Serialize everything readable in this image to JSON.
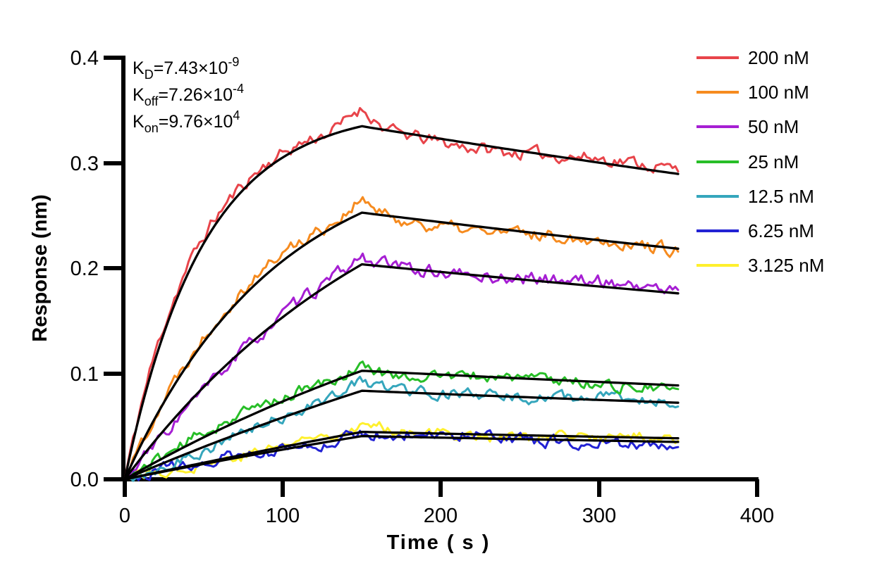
{
  "chart_data": {
    "type": "line",
    "title": "",
    "xlabel": "Time ( s )",
    "ylabel": "Response (nm)",
    "xlim": [
      0,
      400
    ],
    "ylim": [
      0,
      0.4
    ],
    "grid": "off",
    "legend_position": "right",
    "x_ticks": [
      "0",
      "100",
      "200",
      "300",
      "400"
    ],
    "y_ticks": [
      "0.4",
      "0.3",
      "0.2",
      "0.1",
      "0.0"
    ],
    "fit_color": "#000000",
    "koff_per_s": 0.000726,
    "association_end_s": 150,
    "dissociation_end_s": 350,
    "fit_sample_times_s": [
      0,
      25,
      50,
      75,
      100,
      125,
      150,
      175,
      200,
      225,
      250,
      275,
      300,
      325,
      350
    ],
    "series": [
      {
        "label": "200 nM",
        "concentration_nM": 200,
        "color": "#E8444A",
        "peak_response_nm": 0.335,
        "end_response_nm": 0.29,
        "kobs_per_s": 0.02025,
        "fit_responses_nm": [
          0,
          0.14,
          0.224,
          0.275,
          0.306,
          0.324,
          0.335,
          0.329,
          0.323,
          0.317,
          0.312,
          0.306,
          0.3,
          0.295,
          0.29
        ],
        "noise": {
          "amp": 0.0105,
          "slow": 0.003,
          "bump": 0.016,
          "kmult": 1.12,
          "seed": 11
        }
      },
      {
        "label": "100 nM",
        "concentration_nM": 100,
        "color": "#F68B1F",
        "peak_response_nm": 0.253,
        "end_response_nm": 0.219,
        "kobs_per_s": 0.01049,
        "fit_responses_nm": [
          0,
          0.074,
          0.13,
          0.174,
          0.207,
          0.233,
          0.253,
          0.248,
          0.244,
          0.24,
          0.235,
          0.231,
          0.227,
          0.223,
          0.219
        ],
        "noise": {
          "amp": 0.0105,
          "slow": 0.0028,
          "bump": 0.01,
          "kmult": 1.12,
          "seed": 22
        }
      },
      {
        "label": "50 nM",
        "concentration_nM": 50,
        "color": "#A61FD3",
        "peak_response_nm": 0.204,
        "end_response_nm": 0.176,
        "kobs_per_s": 0.00561,
        "fit_responses_nm": [
          0,
          0.047,
          0.088,
          0.123,
          0.154,
          0.181,
          0.204,
          0.2,
          0.197,
          0.193,
          0.19,
          0.186,
          0.183,
          0.18,
          0.176
        ],
        "noise": {
          "amp": 0.0105,
          "slow": 0.0028,
          "bump": 0.004,
          "kmult": 1.06,
          "seed": 33
        }
      },
      {
        "label": "25 nM",
        "concentration_nM": 25,
        "color": "#27BE27",
        "peak_response_nm": 0.103,
        "end_response_nm": 0.089,
        "kobs_per_s": 0.00317,
        "fit_responses_nm": [
          0,
          0.021,
          0.04,
          0.058,
          0.074,
          0.089,
          0.103,
          0.101,
          0.099,
          0.098,
          0.096,
          0.094,
          0.092,
          0.091,
          0.089
        ],
        "noise": {
          "amp": 0.0095,
          "slow": 0.0026,
          "bump": 0.006,
          "kmult": 1.08,
          "seed": 44
        }
      },
      {
        "label": "12.5 nM",
        "concentration_nM": 12.5,
        "color": "#35A6BC",
        "peak_response_nm": 0.084,
        "end_response_nm": 0.073,
        "kobs_per_s": 0.00195,
        "fit_responses_nm": [
          0,
          0.016,
          0.031,
          0.045,
          0.059,
          0.072,
          0.084,
          0.082,
          0.081,
          0.08,
          0.078,
          0.077,
          0.075,
          0.074,
          0.073
        ],
        "noise": {
          "amp": 0.0095,
          "slow": 0.0026,
          "bump": 0.004,
          "kmult": 1.04,
          "seed": 55
        }
      },
      {
        "label": "6.25 nM",
        "concentration_nM": 6.25,
        "color": "#2222D4",
        "peak_response_nm": 0.041,
        "end_response_nm": 0.035,
        "kobs_per_s": 0.00134,
        "fit_responses_nm": [
          0,
          0.007,
          0.015,
          0.022,
          0.028,
          0.035,
          0.041,
          0.04,
          0.04,
          0.039,
          0.038,
          0.037,
          0.037,
          0.036,
          0.035
        ],
        "noise": {
          "amp": 0.0095,
          "slow": 0.0024,
          "bump": 0.002,
          "kmult": 0.94,
          "seed": 66
        }
      },
      {
        "label": "3.125 nM",
        "concentration_nM": 3.125,
        "color": "#FFF02D",
        "peak_response_nm": 0.045,
        "end_response_nm": 0.039,
        "kobs_per_s": 0.00103,
        "fit_responses_nm": [
          0,
          0.008,
          0.016,
          0.023,
          0.031,
          0.038,
          0.045,
          0.044,
          0.043,
          0.043,
          0.042,
          0.041,
          0.04,
          0.04,
          0.039
        ],
        "noise": {
          "amp": 0.009,
          "slow": 0.0024,
          "bump": 0.002,
          "kmult": 1.1,
          "seed": 77
        }
      }
    ],
    "kinetics_annotations": [
      {
        "base": "K",
        "sub": "D",
        "mid": "=7.43×10",
        "sup": "-9"
      },
      {
        "base": "K",
        "sub": "off",
        "mid": "=7.26×10",
        "sup": "-4"
      },
      {
        "base": "K",
        "sub": "on",
        "mid": "=9.76×10",
        "sup": "4"
      }
    ]
  }
}
